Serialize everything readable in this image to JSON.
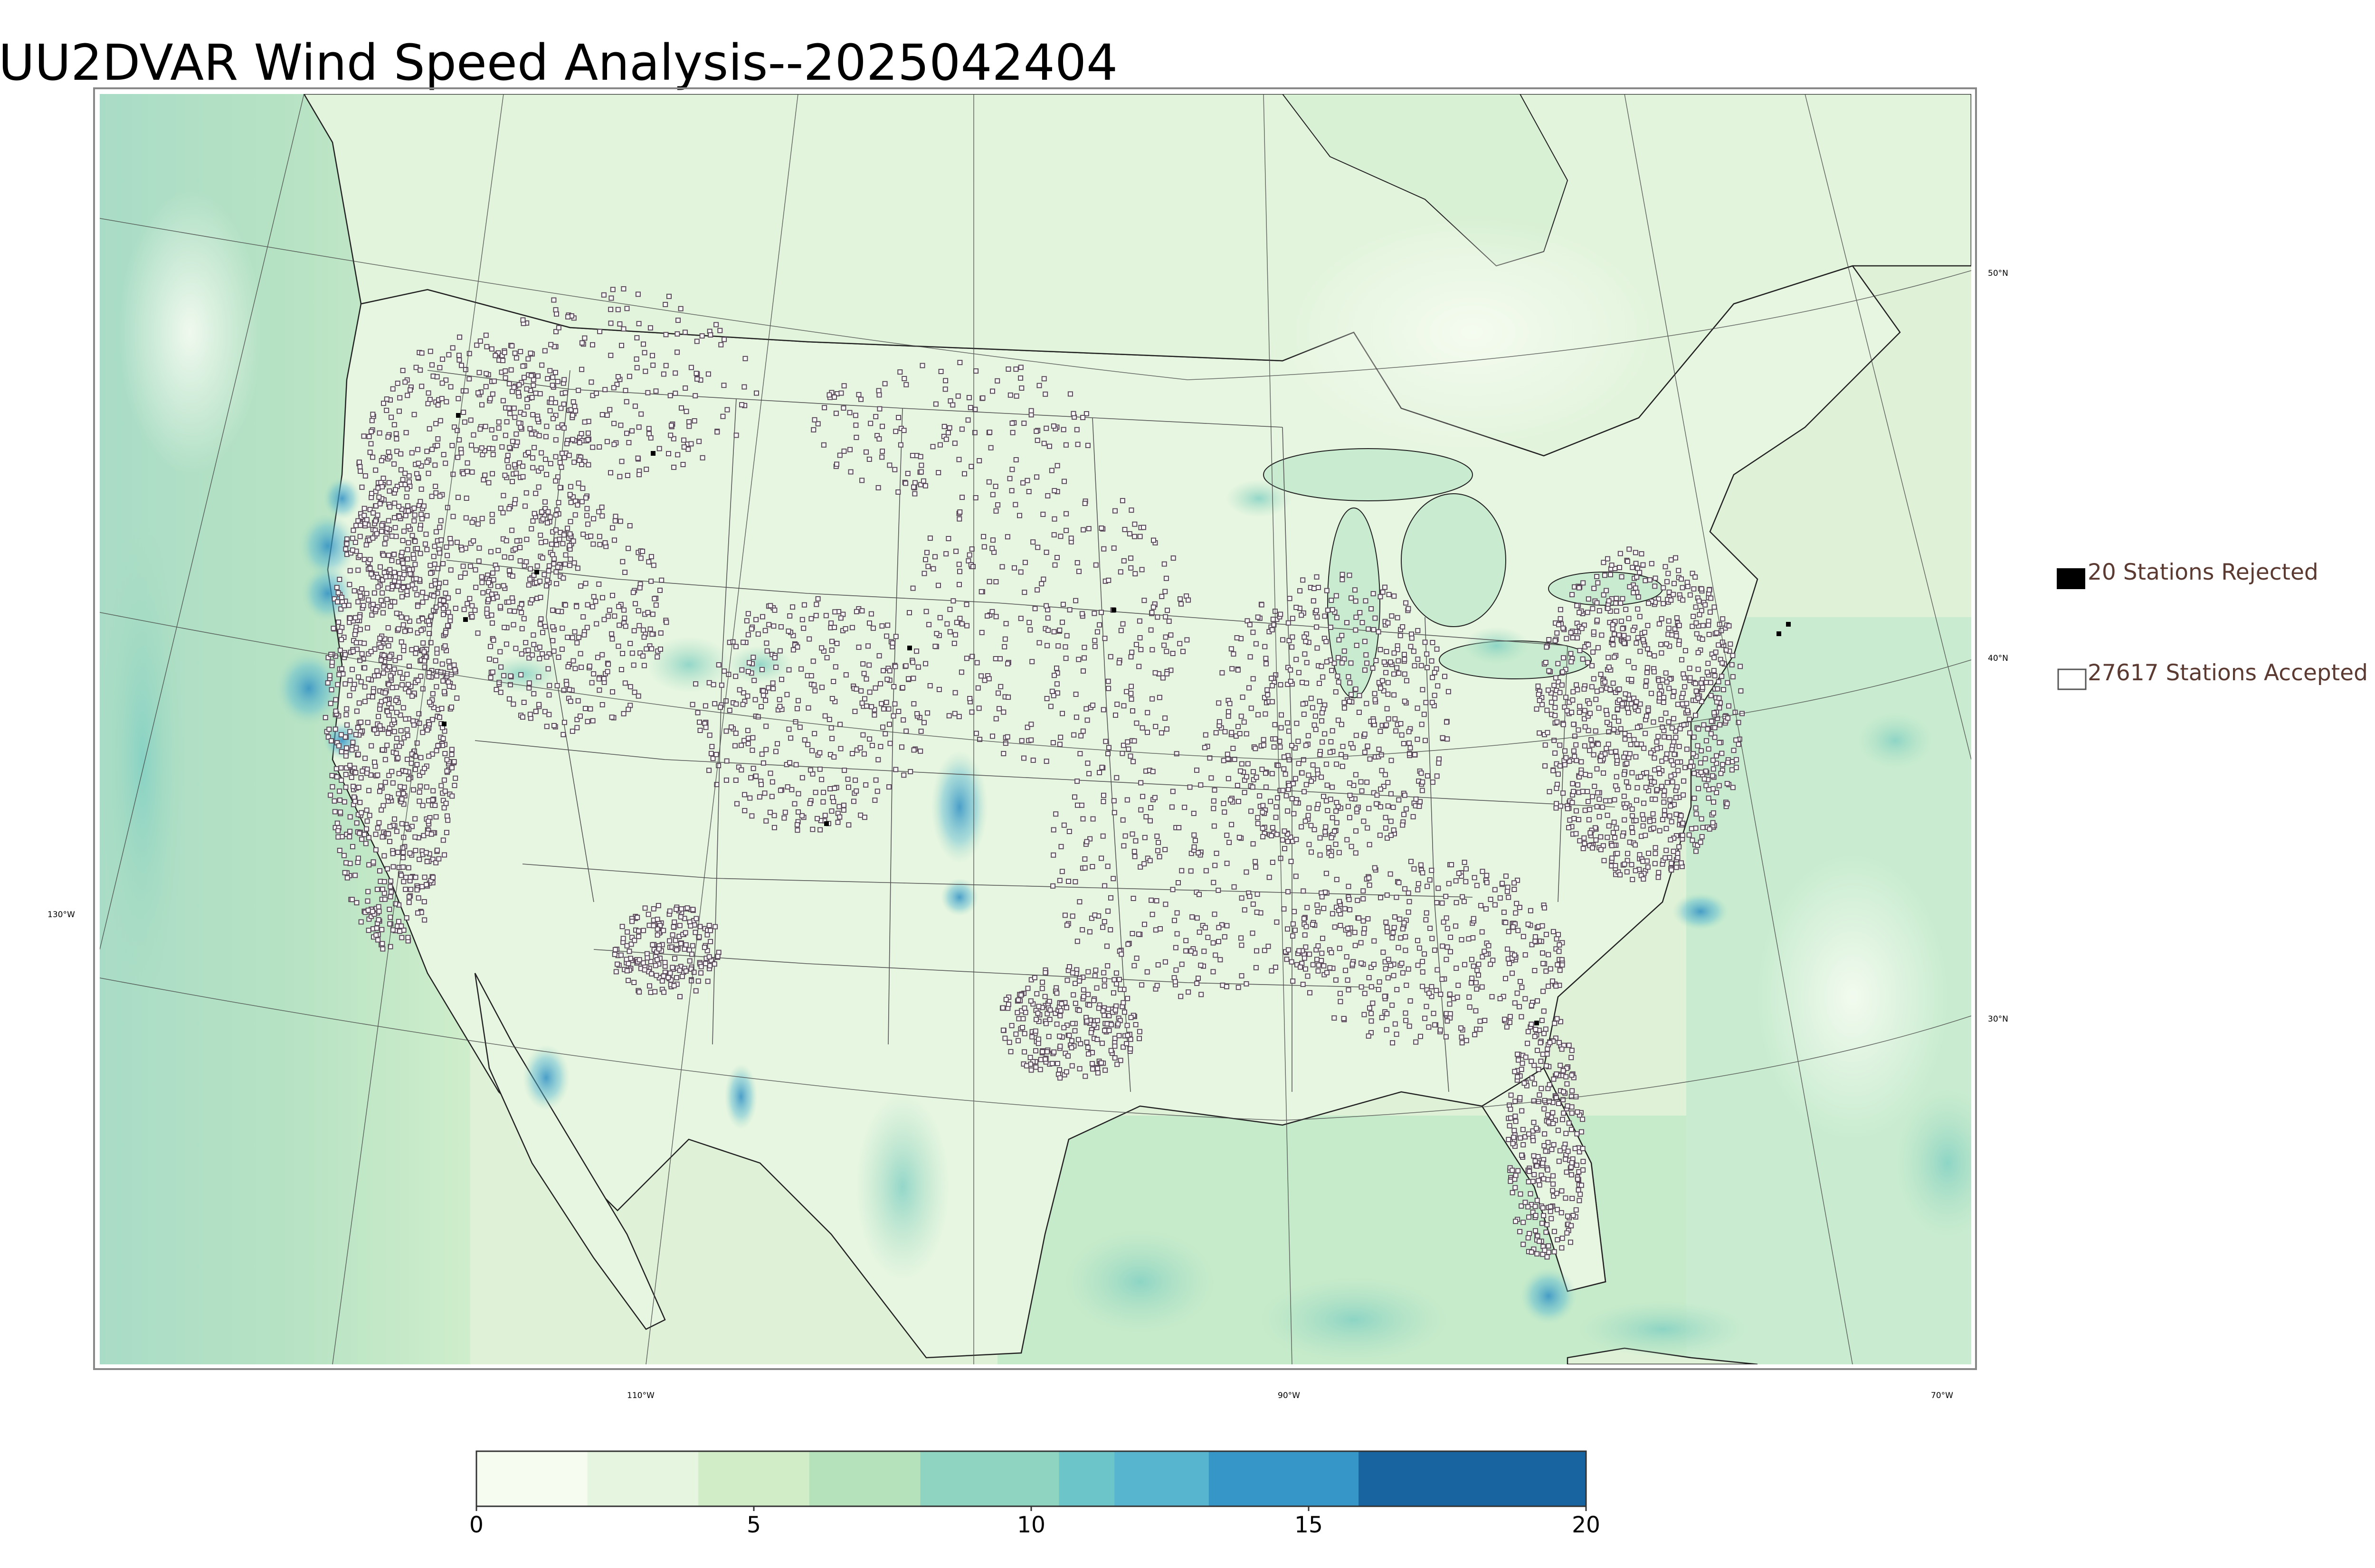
{
  "title": "UU2DVAR Wind Speed Analysis--2025042404",
  "map": {
    "projection": "lambert-conformal",
    "parallels": [
      {
        "label": "50°N",
        "value": 50
      },
      {
        "label": "40°N",
        "value": 40
      },
      {
        "label": "30°N",
        "value": 30
      }
    ],
    "meridians": [
      {
        "label": "130°W",
        "value": -130
      },
      {
        "label": "110°W",
        "value": -110
      },
      {
        "label": "90°W",
        "value": -90
      },
      {
        "label": "70°W",
        "value": -70
      }
    ],
    "colors": {
      "land_low": "#f2faee",
      "land_mid": "#d2eecd",
      "ocean": "#a8dcbf",
      "strong_wind": "#2f8fc4",
      "border": "#333333",
      "station_edge": "#5a4a5a"
    }
  },
  "legend": {
    "rejected": {
      "label": "20 Stations Rejected",
      "marker": "filled-black-square",
      "count": 20
    },
    "accepted": {
      "label": "27617 Stations Accepted",
      "marker": "hollow-square",
      "count": 27617
    },
    "text_color": "#5b3a32"
  },
  "colorbar": {
    "min": 0,
    "max": 20,
    "ticks": [
      {
        "label": "0",
        "value": 0
      },
      {
        "label": "5",
        "value": 5
      },
      {
        "label": "10",
        "value": 10
      },
      {
        "label": "15",
        "value": 15
      },
      {
        "label": "20",
        "value": 20
      }
    ],
    "bins": [
      {
        "from": 0,
        "to": 2,
        "color": "#f7fcf0"
      },
      {
        "from": 2,
        "to": 4,
        "color": "#e6f5df"
      },
      {
        "from": 4,
        "to": 6,
        "color": "#d0edc8"
      },
      {
        "from": 6,
        "to": 8,
        "color": "#b5e2bb"
      },
      {
        "from": 8,
        "to": 10.5,
        "color": "#8fd4c0"
      },
      {
        "from": 10.5,
        "to": 11.5,
        "color": "#6cc5c8"
      },
      {
        "from": 11.5,
        "to": 13.2,
        "color": "#58b5d0"
      },
      {
        "from": 13.2,
        "to": 15.9,
        "color": "#3696c8"
      },
      {
        "from": 15.9,
        "to": 20,
        "color": "#1764a0"
      }
    ]
  }
}
